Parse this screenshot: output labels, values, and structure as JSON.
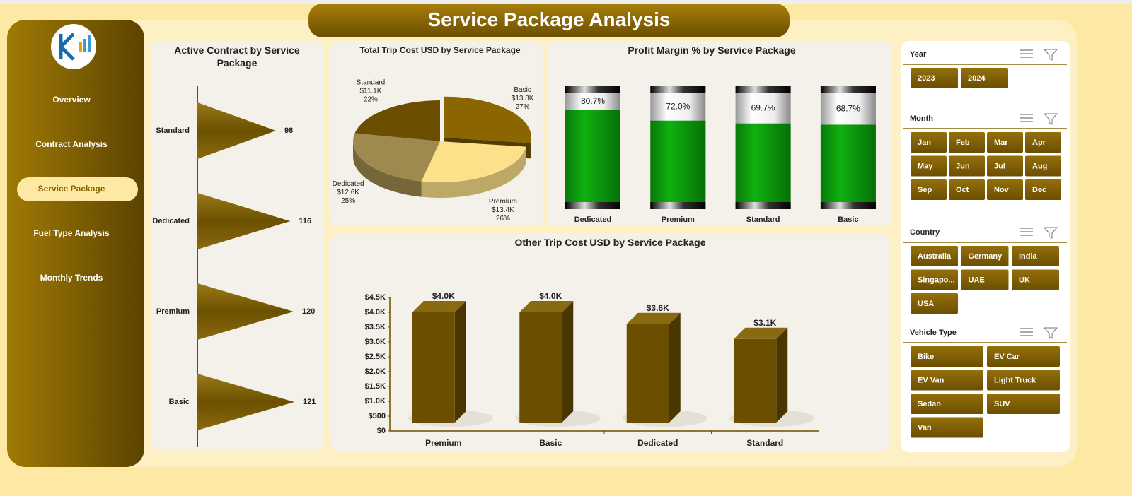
{
  "header": {
    "title": "Service Package Analysis"
  },
  "nav": {
    "items": [
      "Overview",
      "Contract Analysis",
      "Service Package",
      "Fuel  Type Analysis",
      "Monthly Trends"
    ],
    "selected": 2
  },
  "chart_data": [
    {
      "type": "triangle-bar",
      "title": "Active Contract by Service Package",
      "orientation": "horizontal",
      "categories": [
        "Standard",
        "Dedicated",
        "Premium",
        "Basic"
      ],
      "values": [
        98,
        116,
        120,
        121
      ],
      "color": "#7a5c00"
    },
    {
      "type": "pie",
      "title": "Total Trip Cost USD by Service Package",
      "categories": [
        "Basic",
        "Premium",
        "Dedicated",
        "Standard"
      ],
      "values": [
        13800,
        13400,
        12600,
        11100
      ],
      "value_labels": [
        "$13.8K",
        "$13.4K",
        "$12.6K",
        "$11.1K"
      ],
      "percent_labels": [
        "27%",
        "26%",
        "25%",
        "22%"
      ],
      "colors": [
        "#8a6500",
        "#fde08a",
        "#9e8a4e",
        "#6b4e00"
      ]
    },
    {
      "type": "cylinder",
      "title": "Profit Margin % by Service Package",
      "categories": [
        "Dedicated",
        "Premium",
        "Standard",
        "Basic"
      ],
      "values": [
        80.7,
        72.0,
        69.7,
        68.7
      ],
      "value_labels": [
        "80.7%",
        "72.0%",
        "69.7%",
        "68.7%"
      ],
      "ylim": [
        0,
        100
      ],
      "color": "#0a9a0a"
    },
    {
      "type": "bar3d",
      "title": "Other Trip Cost USD by Service Package",
      "categories": [
        "Premium",
        "Basic",
        "Dedicated",
        "Standard"
      ],
      "values": [
        4000,
        4000,
        3600,
        3100
      ],
      "value_labels": [
        "$4.0K",
        "$4.0K",
        "$3.6K",
        "$3.1K"
      ],
      "ylim": [
        0,
        4500
      ],
      "yticks": [
        {
          "value": 0,
          "label": "$0"
        },
        {
          "value": 500,
          "label": "$500"
        },
        {
          "value": 1000,
          "label": "$1.0K"
        },
        {
          "value": 1500,
          "label": "$1.5K"
        },
        {
          "value": 2000,
          "label": "$2.0K"
        },
        {
          "value": 2500,
          "label": "$2.5K"
        },
        {
          "value": 3000,
          "label": "$3.0K"
        },
        {
          "value": 3500,
          "label": "$3.5K"
        },
        {
          "value": 4000,
          "label": "$4.0K"
        },
        {
          "value": 4500,
          "label": "$4.5K"
        }
      ],
      "color": "#6b4e00"
    }
  ],
  "slicers": [
    {
      "title": "Year",
      "items": [
        "2023",
        "2024"
      ]
    },
    {
      "title": "Month",
      "items": [
        "Jan",
        "Feb",
        "Mar",
        "Apr",
        "May",
        "Jun",
        "Jul",
        "Aug",
        "Sep",
        "Oct",
        "Nov",
        "Dec"
      ]
    },
    {
      "title": "Country",
      "items": [
        "Australia",
        "Germany",
        "India",
        "Singapo...",
        "UAE",
        "UK",
        "USA"
      ]
    },
    {
      "title": "Vehicle Type",
      "items": [
        "Bike",
        "EV Car",
        "EV Van",
        "Light Truck",
        "Sedan",
        "SUV",
        "Van"
      ]
    }
  ]
}
